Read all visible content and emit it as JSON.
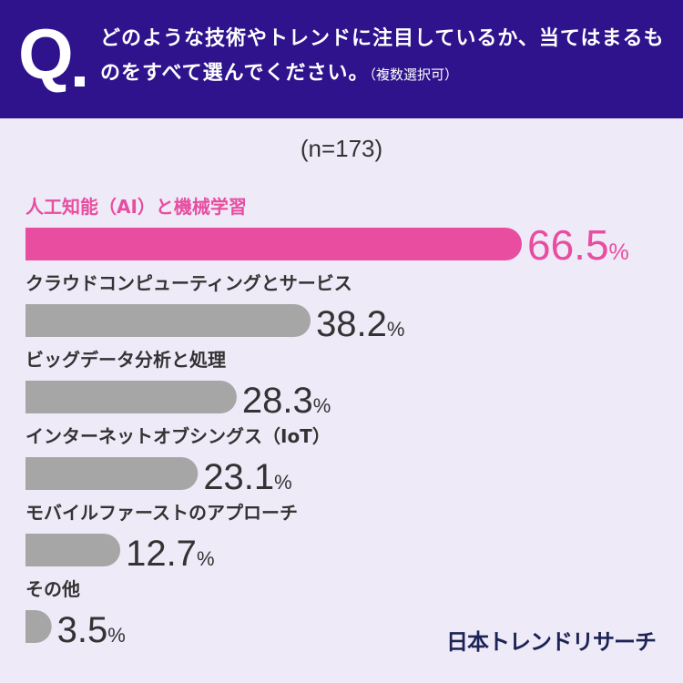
{
  "header": {
    "q_mark": "Q",
    "question": "どのような技術やトレンドに注目しているか、当てはまるものをすべて選んでください。",
    "note": "（複数選択可）"
  },
  "sample_size": "(n=173)",
  "logo": "日本トレンドリサーチ",
  "colors": {
    "header_bg": "#2e138c",
    "highlight": "#e84da0",
    "bar": "#a6a6a6",
    "page_bg": "#efeaf8"
  },
  "chart_data": {
    "type": "bar",
    "orientation": "horizontal",
    "unit": "%",
    "categories": [
      "人工知能（AI）と機械学習",
      "クラウドコンピューティングとサービス",
      "ビッグデータ分析と処理",
      "インターネットオブシングス（IoT）",
      "モバイルファーストのアプローチ",
      "その他"
    ],
    "values": [
      66.5,
      38.2,
      28.3,
      23.1,
      12.7,
      3.5
    ],
    "value_labels": [
      "66.5",
      "38.2",
      "28.3",
      "23.1",
      "12.7",
      "3.5"
    ],
    "highlight_index": 0
  }
}
